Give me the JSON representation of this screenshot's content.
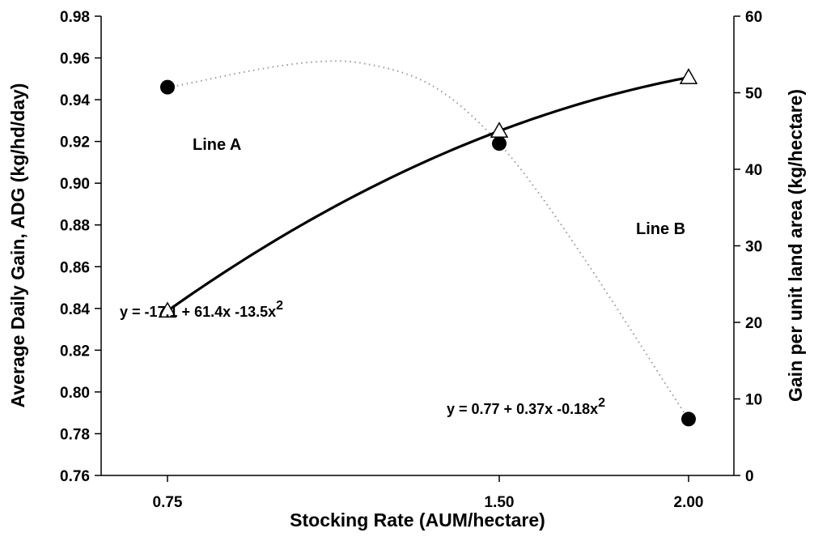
{
  "chart_data": {
    "type": "line",
    "title": "",
    "xlabel": "Stocking Rate (AUM/hectare)",
    "ylabel_left": "Average Daily Gain, ADG (kg/hd/day)",
    "ylabel_right": "Gain per unit land area (kg/hectare)",
    "x_ticks": [
      "0.75",
      "1.50",
      "2.00"
    ],
    "x_tick_values": [
      0.75,
      1.5,
      2.0
    ],
    "y_left_ticks": [
      "0.76",
      "0.78",
      "0.80",
      "0.82",
      "0.84",
      "0.86",
      "0.88",
      "0.90",
      "0.92",
      "0.94",
      "0.96",
      "0.98"
    ],
    "y_right_ticks": [
      "0",
      "10",
      "20",
      "30",
      "40",
      "50",
      "60"
    ],
    "ylim_left": [
      0.76,
      0.98
    ],
    "ylim_right": [
      0,
      60
    ],
    "grid": false,
    "series": [
      {
        "name": "Line A",
        "axis": "right",
        "style": "solid",
        "marker": "open-triangle",
        "x": [
          0.75,
          1.5,
          2.0
        ],
        "y": [
          21.5,
          45.0,
          52.0
        ],
        "equation": "y = -17.1 + 61.4x -13.5x",
        "equation_exp": "2"
      },
      {
        "name": "Line B",
        "axis": "left",
        "style": "dotted",
        "marker": "filled-circle",
        "x": [
          0.75,
          1.5,
          2.0
        ],
        "y": [
          0.946,
          0.919,
          0.787
        ],
        "equation": "y = 0.77 + 0.37x -0.18x",
        "equation_exp": "2"
      }
    ]
  }
}
